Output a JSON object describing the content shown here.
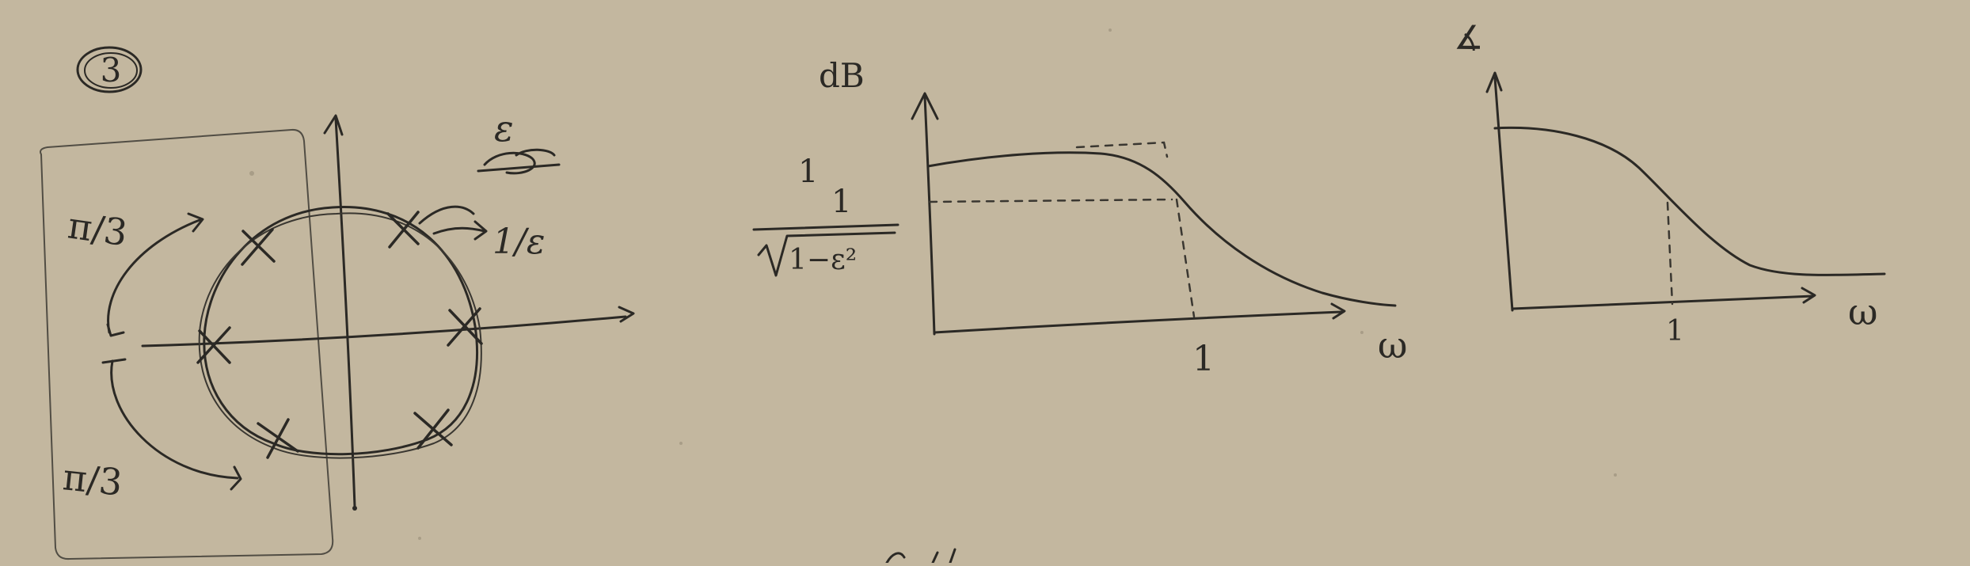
{
  "problem_number": "3",
  "pole_plot": {
    "angle_label_top": "π/3",
    "angle_label_bottom": "π/3",
    "epsilon_label": "ε",
    "radius_label": "1/ε",
    "pole_count": 6
  },
  "magnitude_plot": {
    "ylabel": "dB",
    "xlabel": "ω",
    "ytick_top": "1",
    "ytick_mid_num": "1",
    "ytick_mid_den": "1−ε²",
    "xtick": "1"
  },
  "phase_plot": {
    "ylabel": "∡",
    "xlabel": "ω",
    "xtick": "1"
  }
}
